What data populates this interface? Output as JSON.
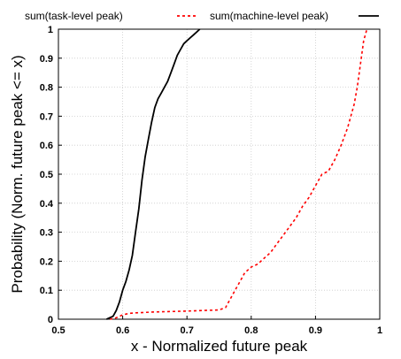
{
  "chart_data": {
    "type": "line",
    "xlabel": "x - Normalized future peak",
    "ylabel": "Probability (Norm. future peak <= x)",
    "xlim": [
      0.5,
      1.0
    ],
    "ylim": [
      0,
      1
    ],
    "xticks": [
      0.5,
      0.6,
      0.7,
      0.8,
      0.9,
      1.0
    ],
    "xtick_labels": [
      "0.5",
      "0.6",
      "0.7",
      "0.8",
      "0.9",
      "1"
    ],
    "yticks": [
      0,
      0.1,
      0.2,
      0.3,
      0.4,
      0.5,
      0.6,
      0.7,
      0.8,
      0.9,
      1.0
    ],
    "ytick_labels": [
      "0",
      "0.1",
      "0.2",
      "0.3",
      "0.4",
      "0.5",
      "0.6",
      "0.7",
      "0.8",
      "0.9",
      "1"
    ],
    "grid": true,
    "legend_position": "top",
    "series": [
      {
        "name": "sum(task-level peak)",
        "color": "#ff0000",
        "dash": "dotted",
        "x": [
          0.58,
          0.59,
          0.6,
          0.61,
          0.62,
          0.65,
          0.7,
          0.75,
          0.76,
          0.765,
          0.77,
          0.775,
          0.78,
          0.785,
          0.79,
          0.8,
          0.81,
          0.82,
          0.83,
          0.84,
          0.85,
          0.86,
          0.87,
          0.88,
          0.89,
          0.9,
          0.91,
          0.92,
          0.93,
          0.94,
          0.95,
          0.96,
          0.965,
          0.97,
          0.975,
          0.98
        ],
        "y": [
          0.0,
          0.005,
          0.015,
          0.02,
          0.022,
          0.025,
          0.028,
          0.032,
          0.04,
          0.06,
          0.08,
          0.1,
          0.12,
          0.14,
          0.16,
          0.18,
          0.19,
          0.21,
          0.23,
          0.26,
          0.29,
          0.32,
          0.35,
          0.39,
          0.42,
          0.46,
          0.5,
          0.51,
          0.55,
          0.6,
          0.66,
          0.74,
          0.8,
          0.88,
          0.96,
          1.0
        ]
      },
      {
        "name": "sum(machine-level peak)",
        "color": "#000000",
        "dash": "solid",
        "x": [
          0.575,
          0.585,
          0.59,
          0.595,
          0.6,
          0.605,
          0.61,
          0.615,
          0.62,
          0.625,
          0.63,
          0.635,
          0.64,
          0.645,
          0.65,
          0.655,
          0.66,
          0.665,
          0.67,
          0.675,
          0.68,
          0.685,
          0.69,
          0.695,
          0.7,
          0.705,
          0.71,
          0.715,
          0.72
        ],
        "y": [
          0.0,
          0.01,
          0.03,
          0.06,
          0.1,
          0.13,
          0.17,
          0.22,
          0.3,
          0.38,
          0.48,
          0.56,
          0.62,
          0.68,
          0.73,
          0.76,
          0.78,
          0.8,
          0.82,
          0.85,
          0.88,
          0.91,
          0.93,
          0.95,
          0.96,
          0.97,
          0.98,
          0.99,
          1.0
        ]
      }
    ]
  }
}
